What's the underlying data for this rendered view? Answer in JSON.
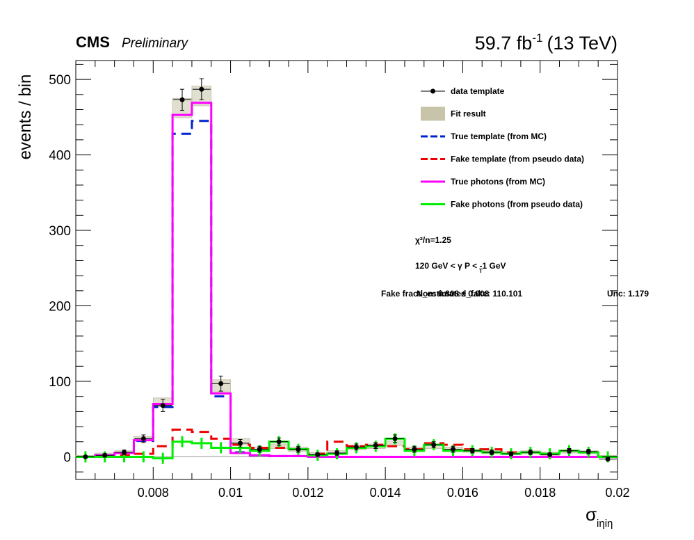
{
  "header": {
    "cms": "CMS",
    "preliminary": "Preliminary",
    "lumi": "59.7 fb",
    "lumi_exp": "-1",
    "energy": "(13 TeV)"
  },
  "colors": {
    "data": "#000000",
    "fit": "#c8c4aa",
    "true_template": "#0022cc",
    "fake_template": "#ee0000",
    "true_photons": "#ff00ff",
    "fake_photons": "#00ee00",
    "background": "#ffffff"
  },
  "chart_data": {
    "type": "histogram",
    "xlabel_main": "σ",
    "xlabel_sub": "iηiη",
    "ylabel": "events / bin",
    "xlim": [
      0.006,
      0.02
    ],
    "ylim": [
      -30,
      525
    ],
    "x_ticks": [
      0.008,
      0.01,
      0.012,
      0.014,
      0.016,
      0.018,
      0.02
    ],
    "x_tick_labels": [
      "0.008",
      "0.01",
      "0.012",
      "0.014",
      "0.016",
      "0.018",
      "0.02"
    ],
    "y_ticks": [
      0,
      100,
      200,
      300,
      400,
      500
    ],
    "y_tick_labels": [
      "0",
      "100",
      "200",
      "300",
      "400",
      "500"
    ],
    "bin_edges": [
      0.006,
      0.0065,
      0.007,
      0.0075,
      0.008,
      0.0085,
      0.009,
      0.0095,
      0.01,
      0.0105,
      0.011,
      0.0115,
      0.012,
      0.0125,
      0.013,
      0.0135,
      0.014,
      0.0145,
      0.015,
      0.0155,
      0.016,
      0.0165,
      0.017,
      0.0175,
      0.018,
      0.0185,
      0.019,
      0.0195,
      0.02
    ],
    "series": [
      {
        "name": "data template",
        "kind": "points",
        "values": [
          0,
          2,
          6,
          24,
          68,
          473,
          487,
          97,
          18,
          10,
          20,
          10,
          3,
          5,
          13,
          15,
          24,
          10,
          16,
          10,
          8,
          6,
          4,
          6,
          3,
          8,
          7,
          -3
        ],
        "errors": [
          1,
          2,
          3,
          5,
          8,
          14,
          14,
          10,
          5,
          4,
          5,
          4,
          2,
          3,
          4,
          4,
          5,
          4,
          4,
          4,
          3,
          3,
          2,
          3,
          2,
          3,
          3,
          2
        ]
      },
      {
        "name": "Fit result",
        "kind": "band",
        "values": [
          1,
          3,
          6,
          24,
          72,
          462,
          478,
          94,
          20,
          10,
          14,
          10,
          4,
          6,
          12,
          14,
          18,
          10,
          14,
          10,
          8,
          6,
          5,
          6,
          4,
          7,
          6,
          1
        ],
        "errors": [
          1,
          2,
          2,
          3,
          6,
          13,
          13,
          8,
          4,
          3,
          3,
          3,
          2,
          2,
          3,
          3,
          3,
          3,
          3,
          3,
          2,
          2,
          2,
          2,
          2,
          2,
          2,
          1
        ]
      },
      {
        "name": "True template (from MC)",
        "kind": "step",
        "dashed": true,
        "values": [
          0,
          2,
          5,
          21,
          66,
          428,
          445,
          80,
          6,
          2,
          1,
          1,
          0,
          0,
          0,
          0,
          0,
          0,
          0,
          0,
          0,
          0,
          0,
          0,
          0,
          0,
          0,
          0
        ]
      },
      {
        "name": "Fake template (from pseudo data)",
        "kind": "step",
        "dashed": true,
        "values": [
          0,
          0,
          2,
          4,
          14,
          36,
          33,
          24,
          16,
          12,
          12,
          10,
          4,
          20,
          14,
          16,
          14,
          10,
          18,
          16,
          10,
          10,
          6,
          6,
          4,
          8,
          6,
          0
        ]
      },
      {
        "name": "True photons (from MC)",
        "kind": "step",
        "values": [
          0,
          2,
          5,
          22,
          70,
          453,
          469,
          84,
          5,
          2,
          1,
          1,
          0,
          0,
          0,
          0,
          0,
          0,
          0,
          0,
          0,
          0,
          0,
          0,
          0,
          0,
          0,
          0
        ]
      },
      {
        "name": "Fake photons (from pseudo data)",
        "kind": "step-cross",
        "values": [
          0,
          0,
          0,
          0,
          -2,
          20,
          18,
          12,
          12,
          8,
          20,
          10,
          2,
          4,
          12,
          14,
          24,
          8,
          16,
          8,
          8,
          6,
          4,
          6,
          4,
          8,
          6,
          0
        ]
      }
    ],
    "annotations": {
      "chi2": "χ²/n=1.25",
      "pt_cut": "120 GeV < γ P   < -1 GeV",
      "pt_sub": "T",
      "overlap_a": "Fake fraction: 0.808 ± 0.008",
      "overlap_b": "N_estimated_fake: 110.101",
      "overlap_c": "Unc: 1.179"
    },
    "legend_position": "top-right",
    "grid": false
  }
}
